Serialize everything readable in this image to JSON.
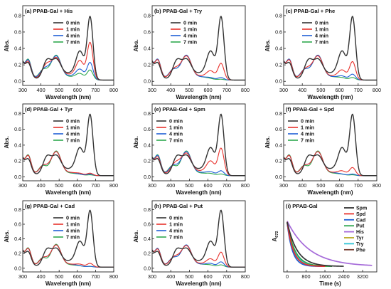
{
  "figure": {
    "common": {
      "x_ticks": [
        300,
        400,
        500,
        600,
        700,
        800
      ],
      "y_ticks": [
        0.0,
        0.2,
        0.4,
        0.6,
        0.8
      ],
      "xlim": [
        300,
        800
      ],
      "ylim": [
        -0.05,
        0.92
      ],
      "xlabel": "Wavelength (nm)",
      "ylabel": "Abs.",
      "legend_labels": [
        "0 min",
        "1 min",
        "4 min",
        "7 min"
      ],
      "colors": [
        "#333333",
        "#e8322c",
        "#1f5fd6",
        "#2fa84f"
      ]
    }
  },
  "chart_data": [
    {
      "type": "line",
      "panel": "a",
      "title": "(a) PPAB-Gal + His",
      "xlabel": "Wavelength (nm)",
      "ylabel": "Abs.",
      "xlim": [
        300,
        800
      ],
      "ylim": [
        -0.05,
        0.92
      ],
      "legend": "top-center",
      "series": [
        {
          "name": "0 min",
          "peak670": 0.76,
          "peak615": 0.33,
          "peak485": 0.24
        },
        {
          "name": "1 min",
          "peak670": 0.45,
          "peak615": 0.22,
          "peak485": 0.26
        },
        {
          "name": "4 min",
          "peak670": 0.21,
          "peak615": 0.12,
          "peak485": 0.28
        },
        {
          "name": "7 min",
          "peak670": 0.12,
          "peak615": 0.07,
          "peak485": 0.29
        }
      ]
    },
    {
      "type": "line",
      "panel": "b",
      "title": "(b) PPAB-Gal + Try",
      "xlabel": "Wavelength (nm)",
      "ylabel": "Abs.",
      "xlim": [
        300,
        800
      ],
      "ylim": [
        -0.05,
        0.92
      ],
      "legend": "top-center",
      "series": [
        {
          "name": "0 min",
          "peak670": 0.76,
          "peak615": 0.33,
          "peak485": 0.24
        },
        {
          "name": "1 min",
          "peak670": 0.2,
          "peak615": 0.1,
          "peak485": 0.28
        },
        {
          "name": "4 min",
          "peak670": 0.03,
          "peak615": 0.02,
          "peak485": 0.29
        },
        {
          "name": "7 min",
          "peak670": 0.01,
          "peak615": 0.01,
          "peak485": 0.29
        }
      ]
    },
    {
      "type": "line",
      "panel": "c",
      "title": "(c) PPAB-Gal + Phe",
      "xlabel": "Wavelength (nm)",
      "ylabel": "Abs.",
      "xlim": [
        300,
        800
      ],
      "ylim": [
        -0.05,
        0.92
      ],
      "legend": "top-center",
      "series": [
        {
          "name": "0 min",
          "peak670": 0.76,
          "peak615": 0.33,
          "peak485": 0.24
        },
        {
          "name": "1 min",
          "peak670": 0.22,
          "peak615": 0.11,
          "peak485": 0.28
        },
        {
          "name": "4 min",
          "peak670": 0.07,
          "peak615": 0.04,
          "peak485": 0.29
        },
        {
          "name": "7 min",
          "peak670": 0.03,
          "peak615": 0.02,
          "peak485": 0.29
        }
      ]
    },
    {
      "type": "line",
      "panel": "d",
      "title": "(d) PPAB-Gal + Tyr",
      "xlabel": "Wavelength (nm)",
      "ylabel": "Abs.",
      "xlim": [
        300,
        800
      ],
      "ylim": [
        -0.05,
        0.92
      ],
      "legend": "top-center",
      "series": [
        {
          "name": "0 min",
          "peak670": 0.76,
          "peak615": 0.33,
          "peak485": 0.24
        },
        {
          "name": "1 min",
          "peak670": 0.03,
          "peak615": 0.02,
          "peak485": 0.29
        },
        {
          "name": "4 min",
          "peak670": 0.02,
          "peak615": 0.01,
          "peak485": 0.29
        },
        {
          "name": "7 min",
          "peak670": 0.01,
          "peak615": 0.01,
          "peak485": 0.3
        }
      ]
    },
    {
      "type": "line",
      "panel": "e",
      "title": "(e) PPAB-Gal + Spm",
      "xlabel": "Wavelength (nm)",
      "ylabel": "Abs.",
      "xlim": [
        300,
        800
      ],
      "ylim": [
        -0.05,
        0.92
      ],
      "legend": "top-left",
      "series": [
        {
          "name": "0 min",
          "peak670": 0.76,
          "peak615": 0.33,
          "peak485": 0.24
        },
        {
          "name": "1 min",
          "peak670": 0.34,
          "peak615": 0.17,
          "peak485": 0.27
        },
        {
          "name": "4 min",
          "peak670": 0.06,
          "peak615": 0.04,
          "peak485": 0.29
        },
        {
          "name": "7 min",
          "peak670": 0.02,
          "peak615": 0.02,
          "peak485": 0.3
        }
      ]
    },
    {
      "type": "line",
      "panel": "f",
      "title": "(f) PPAB-Gal + Spd",
      "xlabel": "Wavelength (nm)",
      "ylabel": "Abs.",
      "xlim": [
        300,
        800
      ],
      "ylim": [
        -0.05,
        0.92
      ],
      "legend": "top-left",
      "series": [
        {
          "name": "0 min",
          "peak670": 0.76,
          "peak615": 0.33,
          "peak485": 0.24
        },
        {
          "name": "1 min",
          "peak670": 0.1,
          "peak615": 0.05,
          "peak485": 0.29
        },
        {
          "name": "4 min",
          "peak670": 0.02,
          "peak615": 0.01,
          "peak485": 0.29
        },
        {
          "name": "7 min",
          "peak670": 0.01,
          "peak615": 0.01,
          "peak485": 0.3
        }
      ]
    },
    {
      "type": "line",
      "panel": "g",
      "title": "(g) PPAB-Gal + Cad",
      "xlabel": "Wavelength (nm)",
      "ylabel": "Abs.",
      "xlim": [
        300,
        800
      ],
      "ylim": [
        -0.05,
        0.92
      ],
      "legend": "top-center",
      "series": [
        {
          "name": "0 min",
          "peak670": 0.76,
          "peak615": 0.33,
          "peak485": 0.24
        },
        {
          "name": "1 min",
          "peak670": 0.05,
          "peak615": 0.03,
          "peak485": 0.29
        },
        {
          "name": "4 min",
          "peak670": 0.01,
          "peak615": 0.01,
          "peak485": 0.29
        },
        {
          "name": "7 min",
          "peak670": 0.01,
          "peak615": 0.01,
          "peak485": 0.3
        }
      ]
    },
    {
      "type": "line",
      "panel": "h",
      "title": "(h) PPAB-Gal + Put",
      "xlabel": "Wavelength (nm)",
      "ylabel": "Abs.",
      "xlim": [
        300,
        800
      ],
      "ylim": [
        -0.05,
        0.92
      ],
      "legend": "top-left",
      "series": [
        {
          "name": "0 min",
          "peak670": 0.76,
          "peak615": 0.33,
          "peak485": 0.24
        },
        {
          "name": "1 min",
          "peak670": 0.2,
          "peak615": 0.1,
          "peak485": 0.28
        },
        {
          "name": "4 min",
          "peak670": 0.07,
          "peak615": 0.04,
          "peak485": 0.29
        },
        {
          "name": "7 min",
          "peak670": 0.03,
          "peak615": 0.02,
          "peak485": 0.29
        }
      ]
    },
    {
      "type": "line",
      "panel": "i",
      "title": "(i) PPAB-Gal",
      "xlabel": "Time (s)",
      "ylabel": "A672",
      "xlim": [
        -150,
        3800
      ],
      "ylim": [
        -0.02,
        0.82
      ],
      "x_ticks": [
        0,
        800,
        1600,
        2400,
        3200
      ],
      "legend": "top-right",
      "series": [
        {
          "name": "Spm",
          "color": "#333333",
          "y0": 0.57,
          "tau": 420,
          "end": 2400
        },
        {
          "name": "Spd",
          "color": "#e8322c",
          "y0": 0.57,
          "tau": 260,
          "end": 1600
        },
        {
          "name": "Cad",
          "color": "#1f5fd6",
          "y0": 0.56,
          "tau": 220,
          "end": 1500
        },
        {
          "name": "Put",
          "color": "#2fa84f",
          "y0": 0.56,
          "tau": 330,
          "end": 1900
        },
        {
          "name": "His",
          "color": "#a56ad9",
          "y0": 0.58,
          "tau": 950,
          "end": 3600
        },
        {
          "name": "Tyr",
          "color": "#b8a81e",
          "y0": 0.56,
          "tau": 260,
          "end": 1700
        },
        {
          "name": "Try",
          "color": "#2cc3d6",
          "y0": 0.56,
          "tau": 300,
          "end": 1800
        },
        {
          "name": "Phe",
          "color": "#7a3f33",
          "y0": 0.56,
          "tau": 320,
          "end": 1900
        }
      ]
    }
  ]
}
